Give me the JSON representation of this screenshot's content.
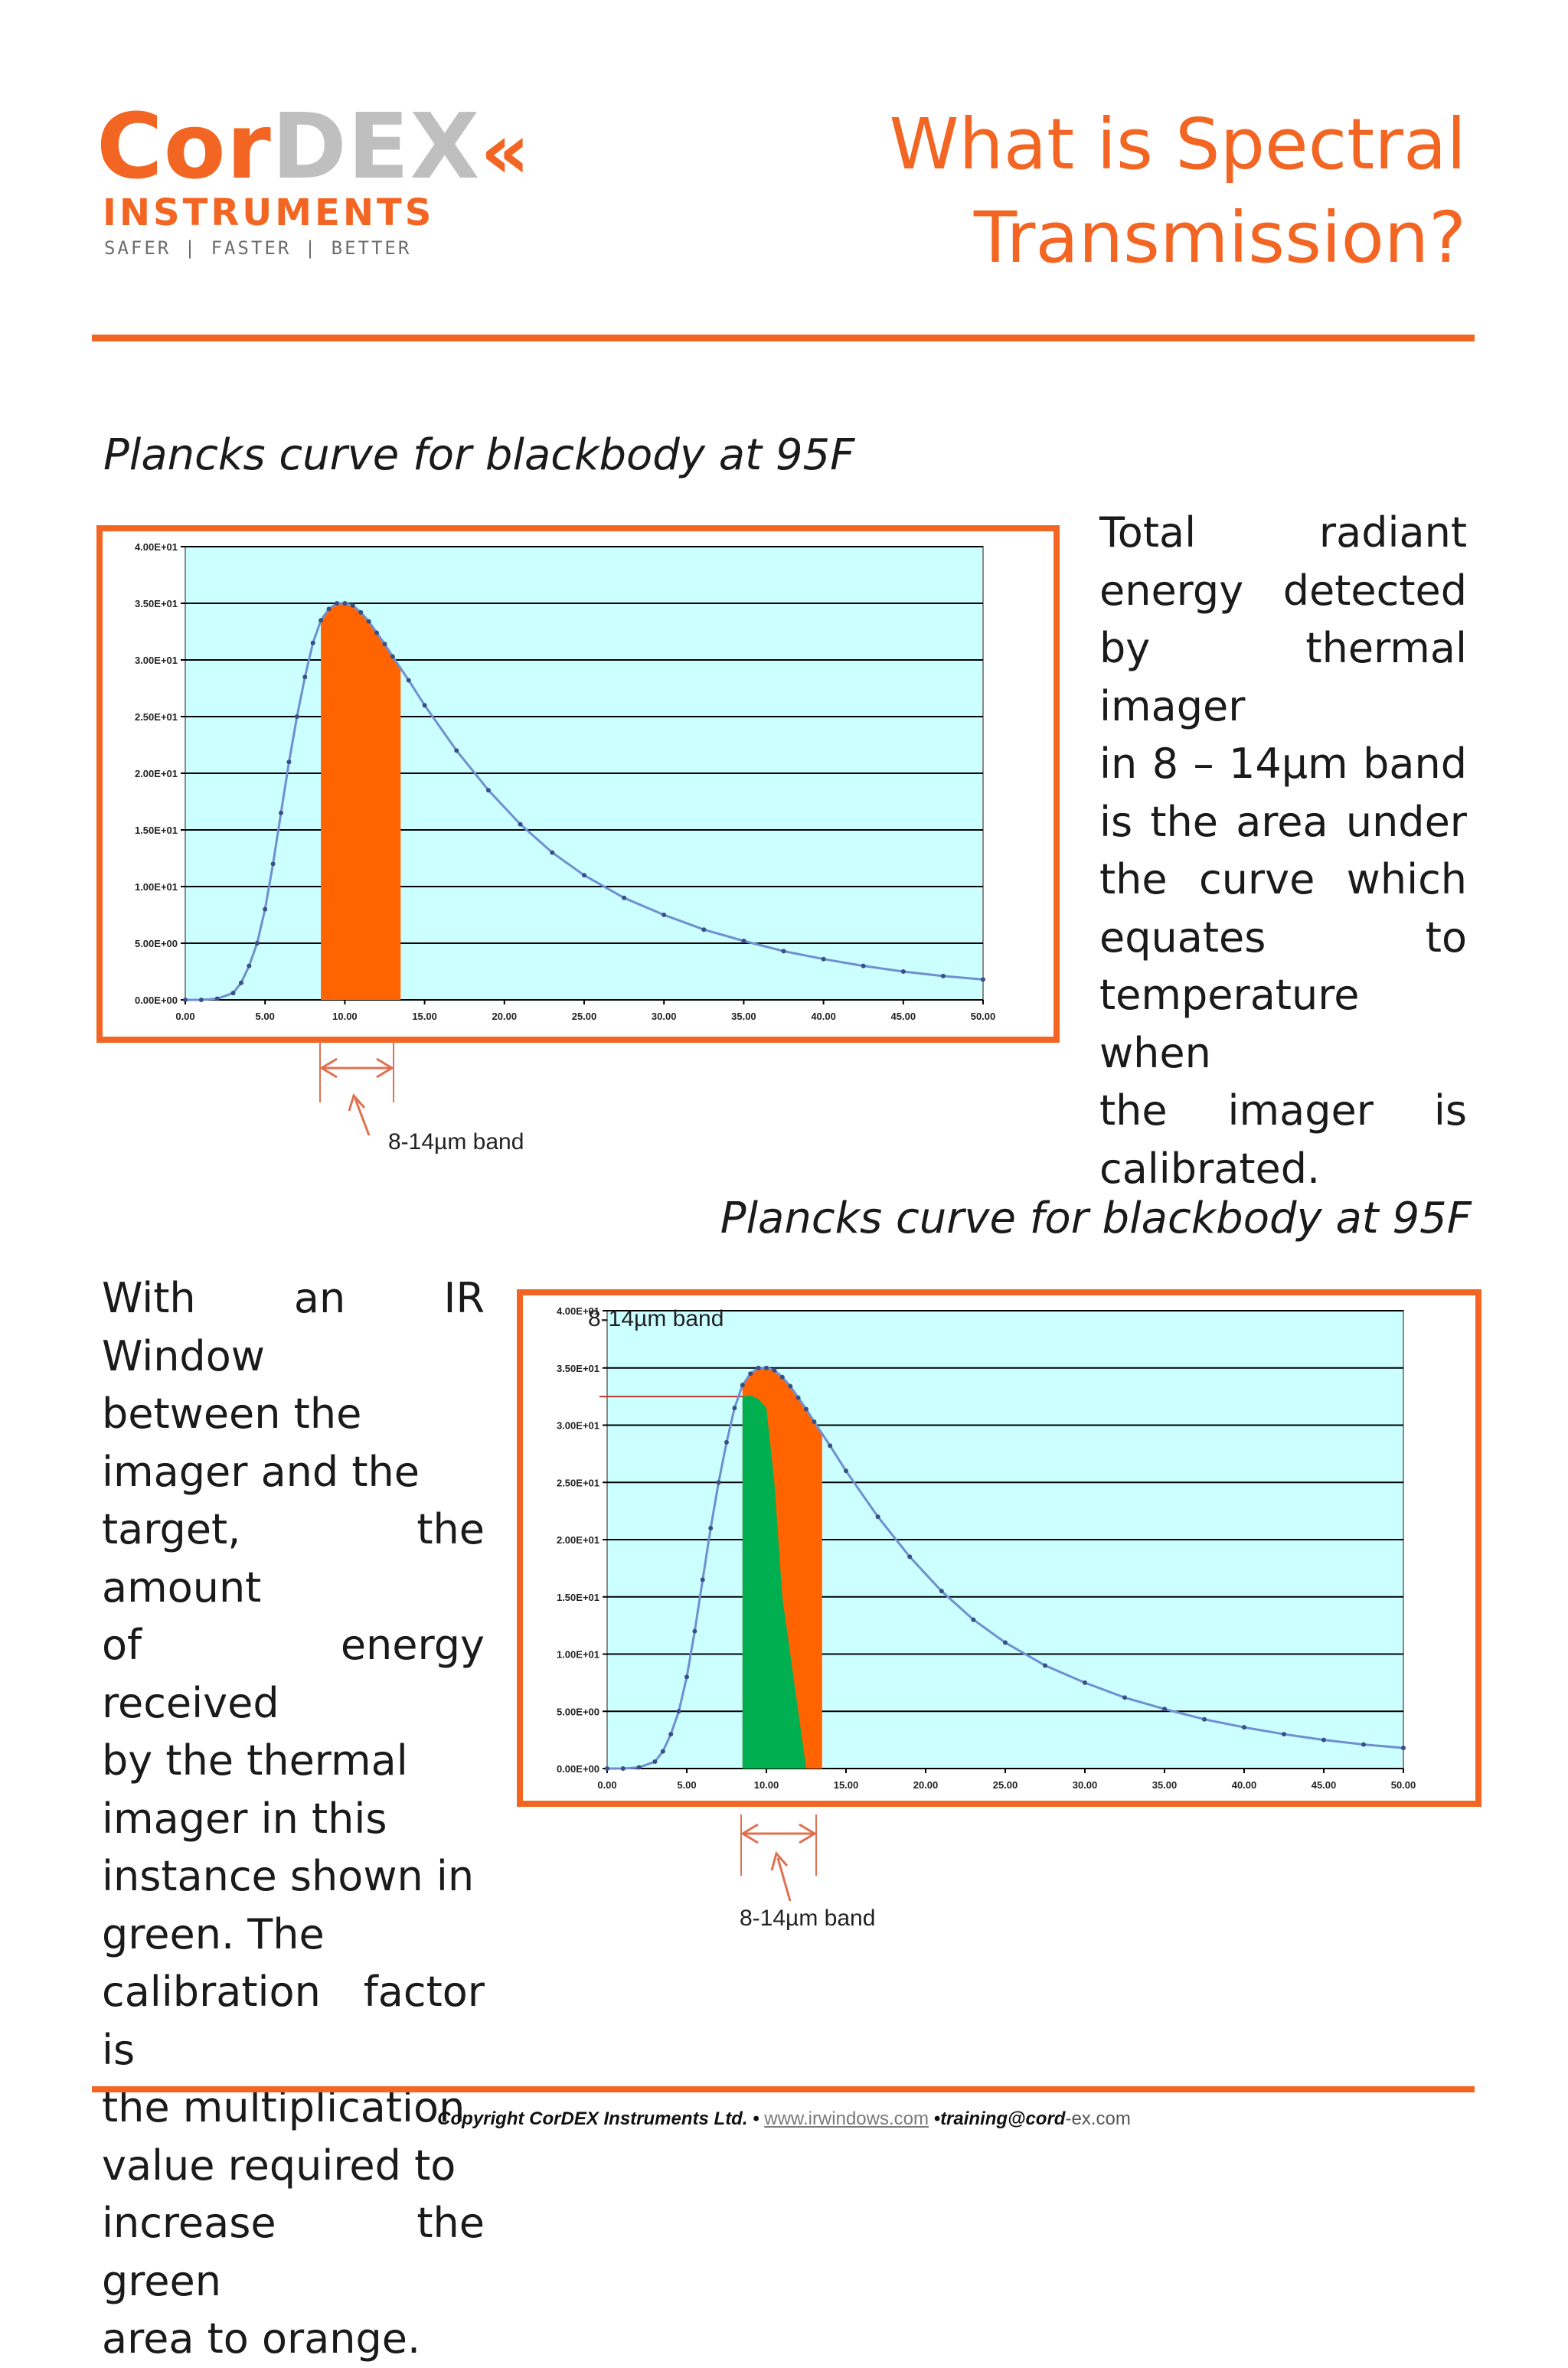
{
  "logo": {
    "cor": "Cor",
    "dex": "DEX",
    "chevrons": "«",
    "instruments": "INSTRUMENTS",
    "tagline": "SAFER | FASTER | BETTER"
  },
  "title": {
    "line1": "What is Spectral",
    "line2": "Transmission?"
  },
  "section1": {
    "heading": "Plancks curve for blackbody at 95F",
    "text_lines": [
      "Total radiant",
      "energy detected",
      "by thermal imager",
      "in 8 – 14µm band",
      "is the area under",
      "the curve which",
      "equates to",
      "temperature when",
      "the imager is",
      "calibrated."
    ],
    "band_label": "8-14µm band"
  },
  "section2": {
    "heading": "Plancks curve for blackbody at 95F",
    "text_lines": [
      "With an IR Window",
      "between the",
      "imager and the",
      "target, the amount",
      "of energy received",
      "by the thermal",
      "imager in this",
      "instance shown in",
      "green. The",
      "calibration factor is",
      "the multiplication",
      "value required to",
      "increase the green",
      "area to orange."
    ],
    "band_label_top": "8-14µm band",
    "band_label": "8-14µm band"
  },
  "footer": {
    "copyright": "Copyright CorDEX Instruments Ltd. •",
    "website": "www.irwindows.com",
    "sep": "•",
    "email_bold": "training@cord",
    "email_rest": "-ex.com"
  },
  "chart_data": [
    {
      "type": "area",
      "title": "",
      "xlabel": "",
      "ylabel": "",
      "xlim": [
        0,
        50
      ],
      "ylim": [
        0,
        40
      ],
      "grid": true,
      "x_ticks": [
        "0.00",
        "5.00",
        "10.00",
        "15.00",
        "20.00",
        "25.00",
        "30.00",
        "35.00",
        "40.00",
        "45.00",
        "50.00"
      ],
      "y_ticks": [
        "0.00E+00",
        "5.00E+00",
        "1.00E+01",
        "1.50E+01",
        "2.00E+01",
        "2.50E+01",
        "3.00E+01",
        "3.50E+01",
        "4.00E+01"
      ],
      "series": [
        {
          "x": [
            0,
            1,
            2,
            3,
            3.5,
            4,
            4.5,
            5,
            5.5,
            6,
            6.5,
            7,
            7.5,
            8,
            8.5,
            9,
            9.5,
            10,
            10.5,
            11,
            11.5,
            12,
            12.5,
            13,
            14,
            15,
            17,
            19,
            21,
            23,
            25,
            27.5,
            30,
            32.5,
            35,
            37.5,
            40,
            42.5,
            45,
            47.5,
            50
          ],
          "y": [
            0,
            0,
            0.1,
            0.6,
            1.5,
            3,
            5,
            8,
            12,
            16.5,
            21,
            25,
            28.5,
            31.5,
            33.5,
            34.5,
            35,
            35,
            34.8,
            34.2,
            33.4,
            32.4,
            31.4,
            30.3,
            28.2,
            26,
            22,
            18.5,
            15.5,
            13,
            11,
            9,
            7.5,
            6.2,
            5.2,
            4.3,
            3.6,
            3,
            2.5,
            2.1,
            1.8
          ]
        }
      ],
      "highlight": {
        "name": "8-14µm band",
        "x_range": [
          8.5,
          13.5
        ],
        "color": "#ff6400"
      },
      "colors": {
        "plot_bg": "#ccffff",
        "line": "#6f8fd0",
        "grid": "#000000"
      }
    },
    {
      "type": "area",
      "title": "",
      "xlabel": "",
      "ylabel": "",
      "xlim": [
        0,
        50
      ],
      "ylim": [
        0,
        40
      ],
      "grid": true,
      "x_ticks": [
        "0.00",
        "5.00",
        "10.00",
        "15.00",
        "20.00",
        "25.00",
        "30.00",
        "35.00",
        "40.00",
        "45.00",
        "50.00"
      ],
      "y_ticks": [
        "0.00E+00",
        "5.00E+00",
        "1.00E+01",
        "1.50E+01",
        "2.00E+01",
        "2.50E+01",
        "3.00E+01",
        "3.50E+01",
        "4.00E+01"
      ],
      "series": [
        {
          "x": [
            0,
            1,
            2,
            3,
            3.5,
            4,
            4.5,
            5,
            5.5,
            6,
            6.5,
            7,
            7.5,
            8,
            8.5,
            9,
            9.5,
            10,
            10.5,
            11,
            11.5,
            12,
            12.5,
            13,
            14,
            15,
            17,
            19,
            21,
            23,
            25,
            27.5,
            30,
            32.5,
            35,
            37.5,
            40,
            42.5,
            45,
            47.5,
            50
          ],
          "y": [
            0,
            0,
            0.1,
            0.6,
            1.5,
            3,
            5,
            8,
            12,
            16.5,
            21,
            25,
            28.5,
            31.5,
            33.5,
            34.5,
            35,
            35,
            34.8,
            34.2,
            33.4,
            32.4,
            31.4,
            30.3,
            28.2,
            26,
            22,
            18.5,
            15.5,
            13,
            11,
            9,
            7.5,
            6.2,
            5.2,
            4.3,
            3.6,
            3,
            2.5,
            2.1,
            1.8
          ]
        }
      ],
      "highlight": {
        "name": "8-14µm band",
        "x_range": [
          8.5,
          13.5
        ],
        "color": "#ff6400"
      },
      "transmitted": {
        "x": [
          8.5,
          9,
          9.5,
          10,
          10.5,
          11,
          12.5
        ],
        "y": [
          32.5,
          32.6,
          32.3,
          31.5,
          25,
          15,
          0
        ],
        "color": "#00b050"
      },
      "reference_level": 32.5,
      "colors": {
        "plot_bg": "#ccffff",
        "line": "#6f8fd0",
        "grid": "#000000"
      }
    }
  ]
}
